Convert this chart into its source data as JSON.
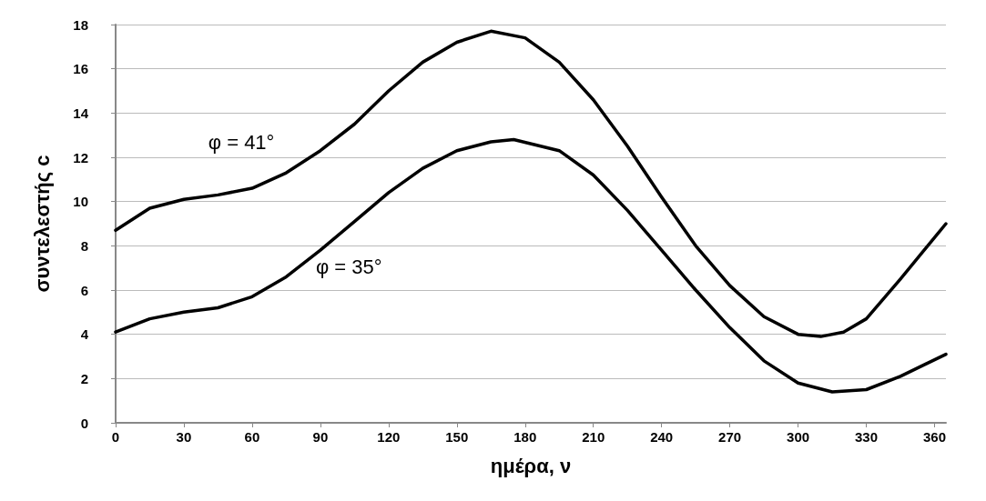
{
  "chart_data": {
    "type": "line",
    "xlabel": "ημέρα, ν",
    "ylabel": "συντελεστής c",
    "series": [
      {
        "name": "φ = 41°",
        "color": "#000000",
        "x": [
          0,
          15,
          30,
          45,
          60,
          75,
          90,
          105,
          120,
          135,
          150,
          165,
          180,
          195,
          210,
          225,
          240,
          255,
          270,
          285,
          300,
          310,
          320,
          330,
          345,
          365
        ],
        "values": [
          8.7,
          9.7,
          10.1,
          10.3,
          10.6,
          11.3,
          12.3,
          13.5,
          15,
          16.3,
          17.2,
          17.7,
          17.4,
          16.3,
          14.6,
          12.5,
          10.2,
          8,
          6.2,
          4.8,
          4.0,
          3.9,
          4.1,
          4.7,
          6.5,
          9.0
        ]
      },
      {
        "name": "φ = 35°",
        "color": "#000000",
        "x": [
          0,
          15,
          30,
          45,
          60,
          75,
          90,
          105,
          120,
          135,
          150,
          165,
          175,
          195,
          210,
          225,
          240,
          255,
          270,
          285,
          300,
          315,
          330,
          345,
          365
        ],
        "values": [
          4.1,
          4.7,
          5.0,
          5.2,
          5.7,
          6.6,
          7.8,
          9.1,
          10.4,
          11.5,
          12.3,
          12.7,
          12.8,
          12.3,
          11.2,
          9.6,
          7.8,
          6.0,
          4.3,
          2.8,
          1.8,
          1.4,
          1.5,
          2.1,
          3.1
        ]
      }
    ],
    "xlim": [
      0,
      365
    ],
    "xticks": [
      0,
      30,
      60,
      90,
      120,
      150,
      180,
      210,
      240,
      270,
      300,
      330,
      360
    ],
    "ylim": [
      0,
      18
    ],
    "yticks": [
      0,
      2,
      4,
      6,
      8,
      10,
      12,
      14,
      16,
      18
    ],
    "grid": "y",
    "marker": "none",
    "line_style": "solid",
    "legend": false
  }
}
